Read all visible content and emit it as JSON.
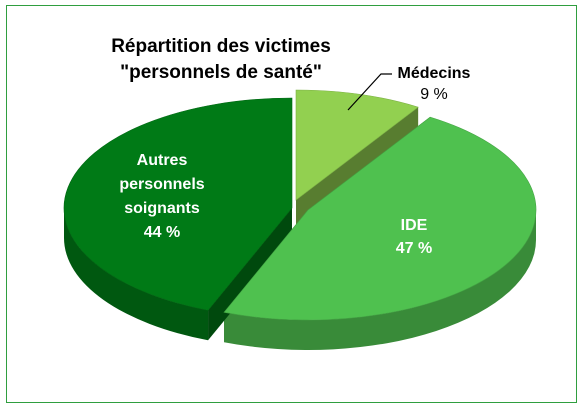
{
  "chart_data": {
    "type": "pie",
    "title_lines": [
      "Répartition des victimes",
      "\"personnels de santé\""
    ],
    "slices": [
      {
        "name": "Médecins",
        "value": 9,
        "value_label": "9 %",
        "color": "#92d050"
      },
      {
        "name": "IDE",
        "value": 47,
        "value_label": "47 %",
        "color": "#4fc14f"
      },
      {
        "name": "Autres personnels soignants",
        "name_lines": [
          "Autres",
          "personnels",
          "soignants"
        ],
        "value": 44,
        "value_label": "44 %",
        "color": "#007a16"
      }
    ],
    "exploded": true,
    "style": "3d",
    "legend": "none"
  }
}
